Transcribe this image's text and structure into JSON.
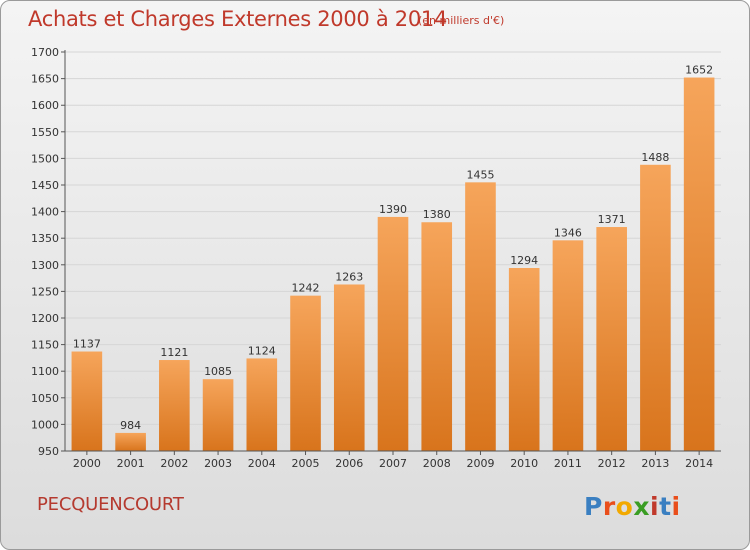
{
  "header": {
    "title": "Achats et Charges Externes 2000 à 2014",
    "subtitle": "(en milliers d'€)"
  },
  "footer": {
    "commune": "PECQUENCOURT",
    "logo_text": "Proxiti",
    "logo_colors": [
      "#3a7fc1",
      "#e94e1b",
      "#f2a900",
      "#3a9d23",
      "#c0392b",
      "#3a7fc1",
      "#e94e1b"
    ]
  },
  "colors": {
    "bar_top": "#f6a55b",
    "bar_bottom": "#d8741c",
    "grid": "#d6d6d6",
    "text": "#333333",
    "title": "#c0392b"
  },
  "chart_data": {
    "type": "bar",
    "categories": [
      "2000",
      "2001",
      "2002",
      "2003",
      "2004",
      "2005",
      "2006",
      "2007",
      "2008",
      "2009",
      "2010",
      "2011",
      "2012",
      "2013",
      "2014"
    ],
    "values": [
      1137,
      984,
      1121,
      1085,
      1124,
      1242,
      1263,
      1390,
      1380,
      1455,
      1294,
      1346,
      1371,
      1488,
      1652
    ],
    "ylim": [
      950,
      1700
    ],
    "yticks": [
      950,
      1000,
      1050,
      1100,
      1150,
      1200,
      1250,
      1300,
      1350,
      1400,
      1450,
      1500,
      1550,
      1600,
      1650,
      1700
    ],
    "title": "Achats et Charges Externes 2000 à 2014",
    "subtitle": "(en milliers d'€)",
    "xlabel": "",
    "ylabel": "",
    "grid": true,
    "data_labels": true
  }
}
